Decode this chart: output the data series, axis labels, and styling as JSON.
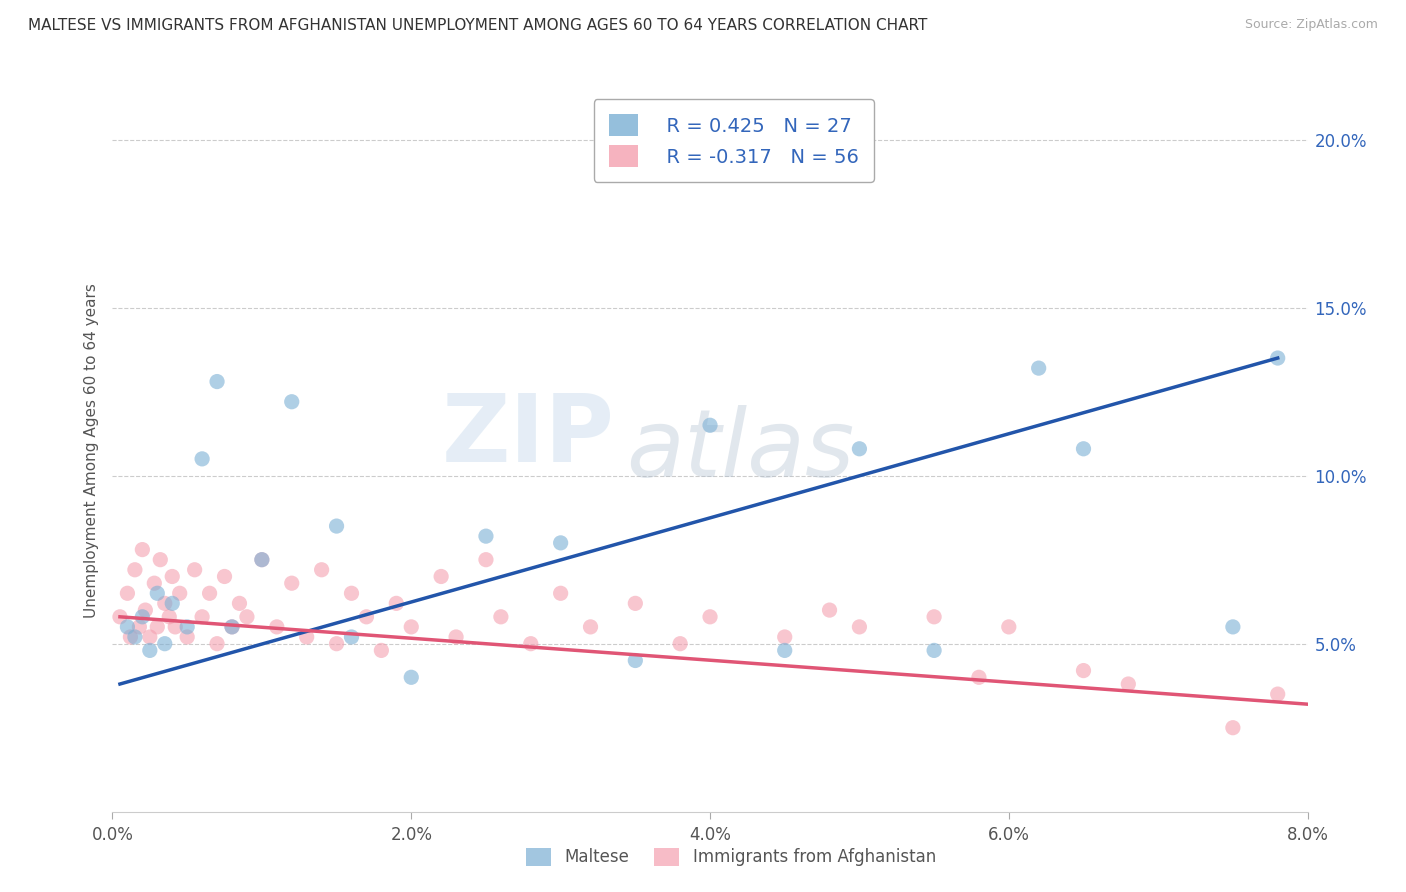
{
  "title": "MALTESE VS IMMIGRANTS FROM AFGHANISTAN UNEMPLOYMENT AMONG AGES 60 TO 64 YEARS CORRELATION CHART",
  "source": "Source: ZipAtlas.com",
  "ylabel": "Unemployment Among Ages 60 to 64 years",
  "xlabel_ticks": [
    "0.0%",
    "2.0%",
    "4.0%",
    "6.0%",
    "8.0%"
  ],
  "xlabel_vals": [
    0.0,
    2.0,
    4.0,
    6.0,
    8.0
  ],
  "ylabel_ticks": [
    "5.0%",
    "10.0%",
    "15.0%",
    "20.0%"
  ],
  "ylabel_vals": [
    5.0,
    10.0,
    15.0,
    20.0
  ],
  "xlim": [
    0.0,
    8.0
  ],
  "ylim": [
    0.0,
    21.5
  ],
  "legend_maltese": "Maltese",
  "legend_afghanistan": "Immigrants from Afghanistan",
  "R_maltese": 0.425,
  "N_maltese": 27,
  "R_afghanistan": -0.317,
  "N_afghanistan": 56,
  "maltese_color": "#7bafd4",
  "afghanistan_color": "#f4a0b0",
  "watermark_zip": "ZIP",
  "watermark_atlas": "atlas",
  "maltese_scatter": [
    [
      0.1,
      5.5
    ],
    [
      0.15,
      5.2
    ],
    [
      0.2,
      5.8
    ],
    [
      0.25,
      4.8
    ],
    [
      0.3,
      6.5
    ],
    [
      0.35,
      5.0
    ],
    [
      0.4,
      6.2
    ],
    [
      0.5,
      5.5
    ],
    [
      0.6,
      10.5
    ],
    [
      0.7,
      12.8
    ],
    [
      0.8,
      5.5
    ],
    [
      1.0,
      7.5
    ],
    [
      1.2,
      12.2
    ],
    [
      1.5,
      8.5
    ],
    [
      1.6,
      5.2
    ],
    [
      2.0,
      4.0
    ],
    [
      2.5,
      8.2
    ],
    [
      3.0,
      8.0
    ],
    [
      3.5,
      4.5
    ],
    [
      4.0,
      11.5
    ],
    [
      4.5,
      4.8
    ],
    [
      5.0,
      10.8
    ],
    [
      5.5,
      4.8
    ],
    [
      6.2,
      13.2
    ],
    [
      6.5,
      10.8
    ],
    [
      7.5,
      5.5
    ],
    [
      7.8,
      13.5
    ]
  ],
  "afghanistan_scatter": [
    [
      0.05,
      5.8
    ],
    [
      0.1,
      6.5
    ],
    [
      0.12,
      5.2
    ],
    [
      0.15,
      7.2
    ],
    [
      0.18,
      5.5
    ],
    [
      0.2,
      7.8
    ],
    [
      0.22,
      6.0
    ],
    [
      0.25,
      5.2
    ],
    [
      0.28,
      6.8
    ],
    [
      0.3,
      5.5
    ],
    [
      0.32,
      7.5
    ],
    [
      0.35,
      6.2
    ],
    [
      0.38,
      5.8
    ],
    [
      0.4,
      7.0
    ],
    [
      0.42,
      5.5
    ],
    [
      0.45,
      6.5
    ],
    [
      0.5,
      5.2
    ],
    [
      0.55,
      7.2
    ],
    [
      0.6,
      5.8
    ],
    [
      0.65,
      6.5
    ],
    [
      0.7,
      5.0
    ],
    [
      0.75,
      7.0
    ],
    [
      0.8,
      5.5
    ],
    [
      0.85,
      6.2
    ],
    [
      0.9,
      5.8
    ],
    [
      1.0,
      7.5
    ],
    [
      1.1,
      5.5
    ],
    [
      1.2,
      6.8
    ],
    [
      1.3,
      5.2
    ],
    [
      1.4,
      7.2
    ],
    [
      1.5,
      5.0
    ],
    [
      1.6,
      6.5
    ],
    [
      1.7,
      5.8
    ],
    [
      1.8,
      4.8
    ],
    [
      1.9,
      6.2
    ],
    [
      2.0,
      5.5
    ],
    [
      2.2,
      7.0
    ],
    [
      2.3,
      5.2
    ],
    [
      2.5,
      7.5
    ],
    [
      2.6,
      5.8
    ],
    [
      2.8,
      5.0
    ],
    [
      3.0,
      6.5
    ],
    [
      3.2,
      5.5
    ],
    [
      3.5,
      6.2
    ],
    [
      3.8,
      5.0
    ],
    [
      4.0,
      5.8
    ],
    [
      4.5,
      5.2
    ],
    [
      4.8,
      6.0
    ],
    [
      5.0,
      5.5
    ],
    [
      5.5,
      5.8
    ],
    [
      5.8,
      4.0
    ],
    [
      6.0,
      5.5
    ],
    [
      6.5,
      4.2
    ],
    [
      6.8,
      3.8
    ],
    [
      7.5,
      2.5
    ],
    [
      7.8,
      3.5
    ]
  ],
  "blue_line_x": [
    0.05,
    7.8
  ],
  "blue_line_y": [
    3.8,
    13.5
  ],
  "pink_line_x": [
    0.05,
    8.0
  ],
  "pink_line_y": [
    5.8,
    3.2
  ]
}
